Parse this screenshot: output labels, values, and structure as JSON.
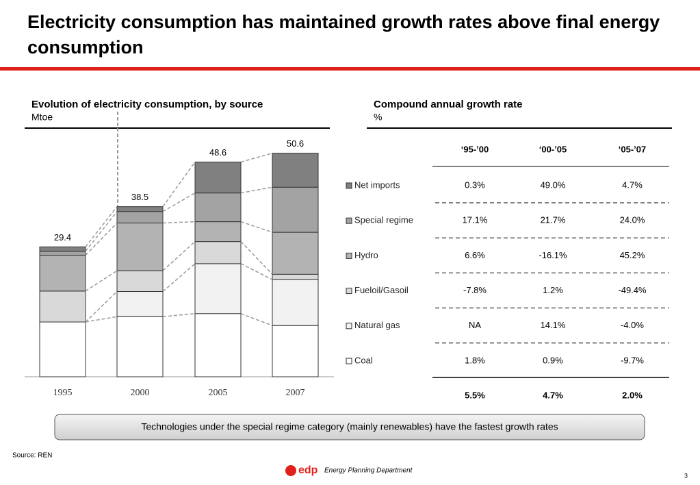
{
  "title": "Electricity consumption has maintained growth rates above final energy consumption",
  "chart_data": {
    "type": "bar",
    "stacked": true,
    "title": "Evolution of electricity consumption, by source",
    "unit": "Mtoe",
    "categories": [
      "1995",
      "2000",
      "2005",
      "2007"
    ],
    "series": [
      {
        "name": "Coal",
        "color": "#ffffff",
        "values": [
          12.4,
          13.6,
          14.3,
          11.6
        ]
      },
      {
        "name": "Natural gas",
        "color": "#f2f2f2",
        "values": [
          null,
          5.7,
          11.3,
          10.4
        ]
      },
      {
        "name": "Fueloil/Gasoil",
        "color": "#d9d9d9",
        "values": [
          7.0,
          4.7,
          5.0,
          1.2
        ]
      },
      {
        "name": "Hydro",
        "color": "#b3b3b3",
        "values": [
          8.1,
          10.8,
          4.5,
          9.5
        ]
      },
      {
        "name": "Special regime",
        "color": "#a3a3a3",
        "values": [
          0.9,
          2.6,
          6.5,
          10.2
        ]
      },
      {
        "name": "Net imports",
        "color": "#808080",
        "values": [
          1.0,
          1.1,
          7.0,
          7.7
        ]
      }
    ],
    "totals": [
      29.4,
      38.5,
      48.6,
      50.6
    ]
  },
  "table": {
    "title": "Compound annual growth rate",
    "unit": "%",
    "columns": [
      "‘95-’00",
      "‘00-’05",
      "‘05-’07"
    ],
    "rows": [
      [
        "0.3%",
        "49.0%",
        "4.7%"
      ],
      [
        "17.1%",
        "21.7%",
        "24.0%"
      ],
      [
        "6.6%",
        "-16.1%",
        "45.2%"
      ],
      [
        "-7.8%",
        "1.2%",
        "-49.4%"
      ],
      [
        "NA",
        "14.1%",
        "-4.0%"
      ],
      [
        "1.8%",
        "0.9%",
        "-9.7%"
      ]
    ],
    "total": [
      "5.5%",
      "4.7%",
      "2.0%"
    ]
  },
  "callout": "Technologies under the special regime category (mainly renewables) have the fastest growth rates",
  "source": "Source: REN",
  "brand": "edp",
  "department": "Energy Planning Department",
  "page": "3"
}
